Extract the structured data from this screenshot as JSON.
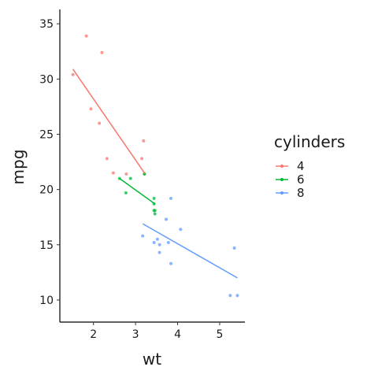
{
  "chart_data": {
    "type": "scatter",
    "xlabel": "wt",
    "ylabel": "mpg",
    "xlim": [
      1.2,
      5.6
    ],
    "ylim": [
      8,
      36.3
    ],
    "x_ticks": [
      2,
      3,
      4,
      5
    ],
    "y_ticks": [
      10,
      15,
      20,
      25,
      30,
      35
    ],
    "x_tick_labels": [
      "2",
      "3",
      "4",
      "5"
    ],
    "y_tick_labels": [
      "10",
      "15",
      "20",
      "25",
      "30",
      "35"
    ],
    "grid": false,
    "legend": {
      "title": "cylinders",
      "position": "right"
    },
    "series": [
      {
        "name": "4",
        "color": "#F8766D",
        "points": [
          [
            1.51,
            30.4
          ],
          [
            1.83,
            33.9
          ],
          [
            1.94,
            27.3
          ],
          [
            2.14,
            26.0
          ],
          [
            2.2,
            32.4
          ],
          [
            2.32,
            22.8
          ],
          [
            2.47,
            21.5
          ],
          [
            2.78,
            21.4
          ],
          [
            3.15,
            22.8
          ],
          [
            3.19,
            24.4
          ],
          [
            3.21,
            21.4
          ]
        ],
        "fit": [
          [
            1.51,
            30.9
          ],
          [
            3.21,
            21.5
          ]
        ]
      },
      {
        "name": "6",
        "color": "#00BA38",
        "points": [
          [
            2.62,
            21.0
          ],
          [
            2.77,
            19.7
          ],
          [
            2.88,
            21.0
          ],
          [
            3.21,
            21.4
          ],
          [
            3.44,
            18.1
          ],
          [
            3.44,
            19.2
          ],
          [
            3.44,
            18.7
          ],
          [
            3.46,
            17.8
          ],
          [
            3.46,
            18.1
          ]
        ],
        "fit": [
          [
            2.62,
            21.0
          ],
          [
            3.46,
            18.7
          ]
        ]
      },
      {
        "name": "8",
        "color": "#619CFF",
        "points": [
          [
            3.17,
            15.8
          ],
          [
            3.44,
            15.2
          ],
          [
            3.52,
            15.5
          ],
          [
            3.57,
            15.0
          ],
          [
            3.57,
            14.3
          ],
          [
            3.73,
            17.3
          ],
          [
            3.78,
            15.2
          ],
          [
            3.84,
            13.3
          ],
          [
            3.84,
            19.2
          ],
          [
            4.07,
            16.4
          ],
          [
            5.25,
            10.4
          ],
          [
            5.35,
            14.7
          ],
          [
            5.42,
            10.4
          ]
        ],
        "fit": [
          [
            3.17,
            16.9
          ],
          [
            5.42,
            12.0
          ]
        ]
      }
    ]
  }
}
